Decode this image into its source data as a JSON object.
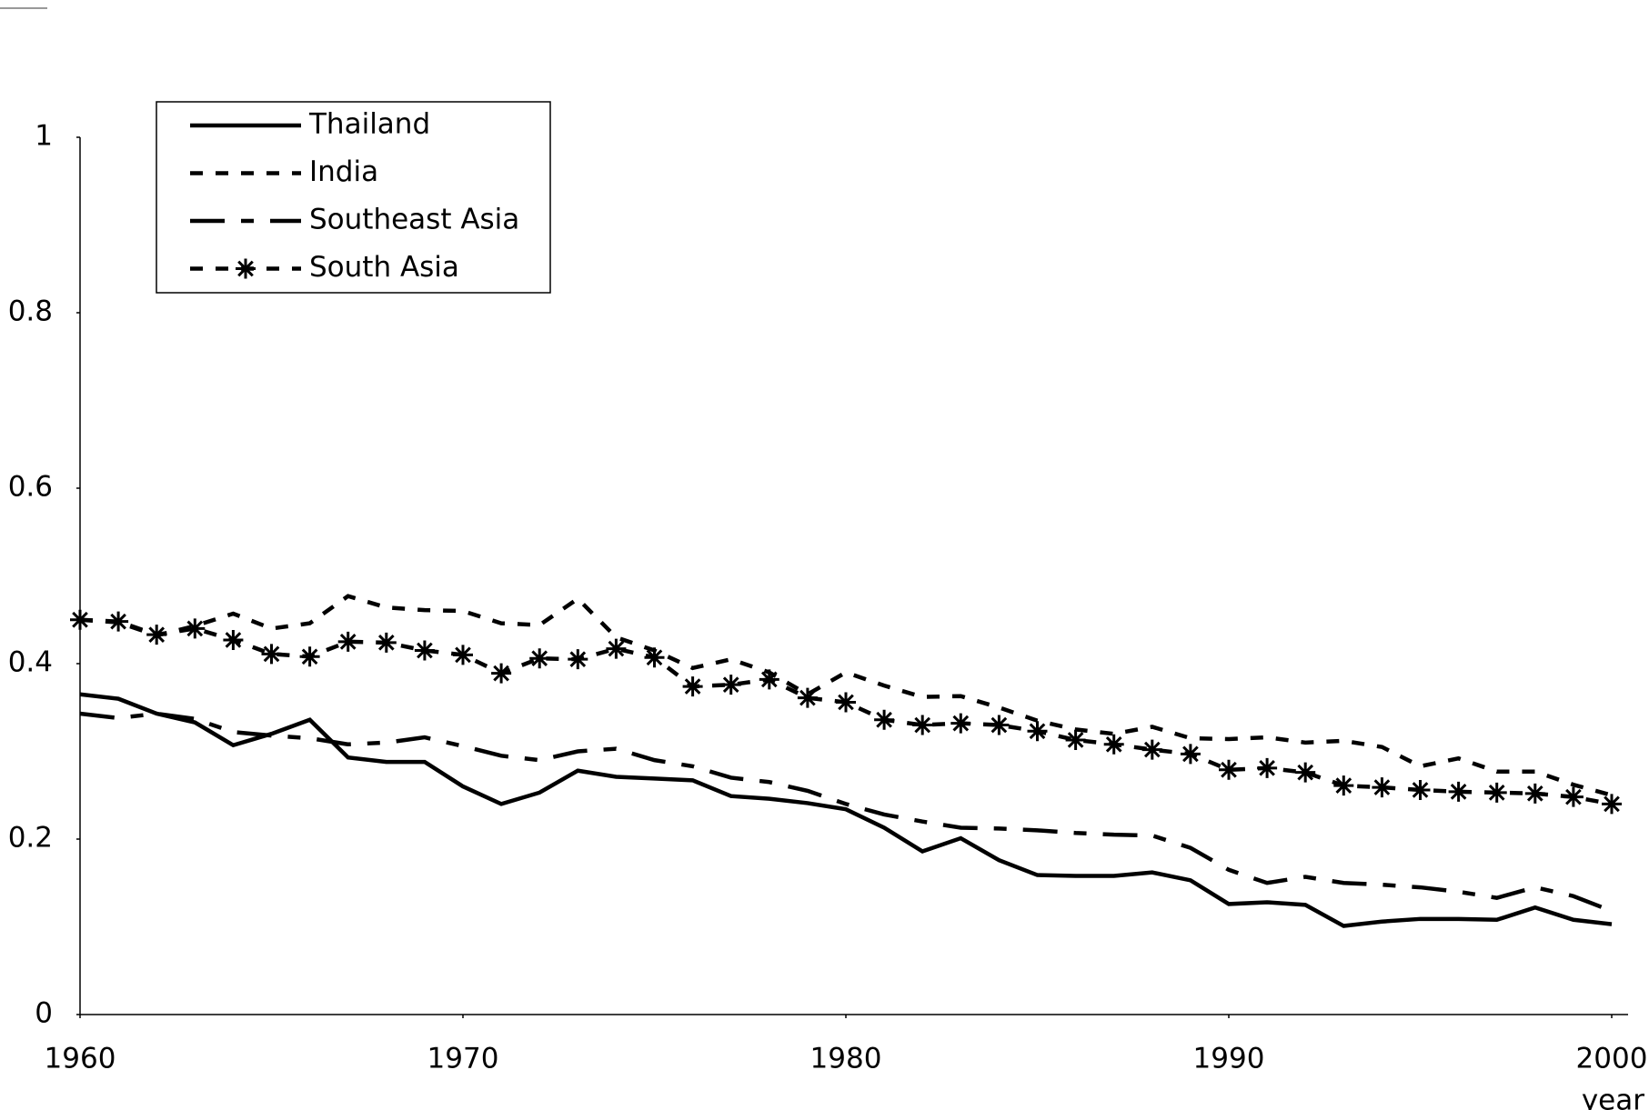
{
  "chart_data": {
    "type": "line",
    "xlabel": "year",
    "x": [
      1960,
      1961,
      1962,
      1963,
      1964,
      1965,
      1966,
      1967,
      1968,
      1969,
      1970,
      1971,
      1972,
      1973,
      1974,
      1975,
      1976,
      1977,
      1978,
      1979,
      1980,
      1981,
      1982,
      1983,
      1984,
      1985,
      1986,
      1987,
      1988,
      1989,
      1990,
      1991,
      1992,
      1993,
      1994,
      1995,
      1996,
      1997,
      1998,
      1999,
      2000
    ],
    "xlim": [
      1960,
      2000
    ],
    "xticks": [
      1960,
      1970,
      1980,
      1990,
      2000
    ],
    "ylim": [
      0,
      1
    ],
    "yticks": [
      0,
      0.2,
      0.4,
      0.6,
      0.8,
      1
    ],
    "legend": "top-left",
    "series": [
      {
        "name": "Thailand",
        "color": "#000000",
        "dash": "solid",
        "values": [
          0.365,
          0.36,
          0.343,
          0.333,
          0.307,
          0.32,
          0.336,
          0.293,
          0.288,
          0.288,
          0.26,
          0.24,
          0.253,
          0.278,
          0.271,
          0.269,
          0.267,
          0.249,
          0.246,
          0.241,
          0.234,
          0.213,
          0.186,
          0.201,
          0.176,
          0.159,
          0.158,
          0.158,
          0.162,
          0.153,
          0.126,
          0.128,
          0.125,
          0.101,
          0.106,
          0.109,
          0.109,
          0.108,
          0.122,
          0.108,
          0.103
        ]
      },
      {
        "name": "India",
        "color": "#000000",
        "dash": "short",
        "values": [
          0.45,
          0.447,
          0.432,
          0.443,
          0.457,
          0.44,
          0.446,
          0.477,
          0.464,
          0.461,
          0.46,
          0.446,
          0.444,
          0.474,
          0.43,
          0.415,
          0.395,
          0.405,
          0.39,
          0.365,
          0.39,
          0.375,
          0.362,
          0.363,
          0.35,
          0.335,
          0.325,
          0.32,
          0.328,
          0.315,
          0.314,
          0.316,
          0.31,
          0.312,
          0.305,
          0.283,
          0.292,
          0.277,
          0.277,
          0.262,
          0.25
        ]
      },
      {
        "name": "Southeast Asia",
        "color": "#000000",
        "dash": "long-short",
        "values": [
          0.343,
          0.338,
          0.343,
          0.337,
          0.322,
          0.318,
          0.315,
          0.308,
          0.31,
          0.316,
          0.306,
          0.295,
          0.29,
          0.3,
          0.303,
          0.29,
          0.283,
          0.27,
          0.265,
          0.255,
          0.24,
          0.228,
          0.22,
          0.213,
          0.212,
          0.21,
          0.207,
          0.205,
          0.204,
          0.19,
          0.165,
          0.15,
          0.157,
          0.15,
          0.148,
          0.145,
          0.14,
          0.133,
          0.145,
          0.135,
          0.118
        ]
      },
      {
        "name": "South Asia",
        "color": "#000000",
        "dash": "short",
        "marker": "asterisk",
        "values": [
          0.45,
          0.448,
          0.433,
          0.44,
          0.427,
          0.411,
          0.408,
          0.425,
          0.424,
          0.415,
          0.41,
          0.389,
          0.406,
          0.405,
          0.417,
          0.407,
          0.374,
          0.376,
          0.382,
          0.361,
          0.356,
          0.336,
          0.33,
          0.332,
          0.33,
          0.323,
          0.313,
          0.308,
          0.302,
          0.297,
          0.279,
          0.281,
          0.276,
          0.261,
          0.259,
          0.256,
          0.254,
          0.253,
          0.252,
          0.248,
          0.24
        ]
      }
    ]
  }
}
